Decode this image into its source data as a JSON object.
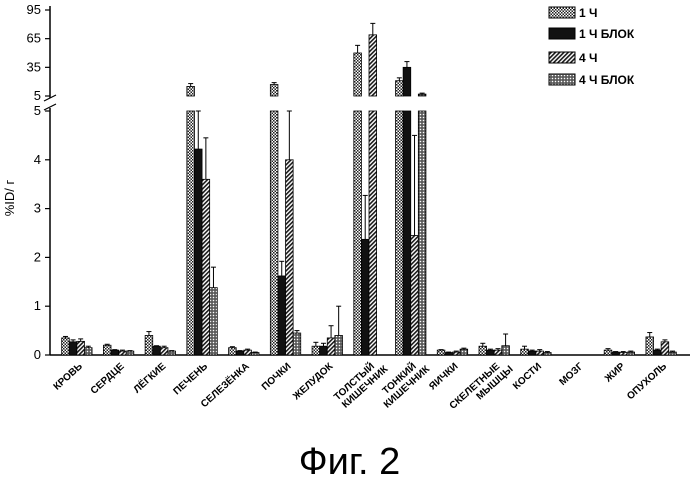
{
  "figure_caption": "Фиг. 2",
  "chart_data": {
    "type": "bar",
    "ylabel": "%ID/ г",
    "title": "",
    "xlabel": "",
    "y_axis_broken": true,
    "ylim_lower": [
      0,
      5
    ],
    "ylim_upper": [
      5,
      95
    ],
    "yticks_lower": [
      "0",
      "1",
      "2",
      "3",
      "4",
      "5"
    ],
    "yticks_upper": [
      "5",
      "35",
      "65",
      "95"
    ],
    "legend_position": "top-right",
    "categories": [
      [
        "КРОВЬ"
      ],
      [
        "СЕРДЦЕ"
      ],
      [
        "ЛЁГКИЕ"
      ],
      [
        "ПЕЧЕНЬ"
      ],
      [
        "СЕЛЕЗЁНКА"
      ],
      [
        "ПОЧКИ"
      ],
      [
        "ЖЕЛУДОК"
      ],
      [
        "ТОЛСТЫЙ",
        "КИШЕЧНИК"
      ],
      [
        "ТОНКИЙ",
        "КИШЕЧНИК"
      ],
      [
        "ЯИЧКИ"
      ],
      [
        "СКЕЛЕТНЫЕ",
        "МЫШЦЫ"
      ],
      [
        "КОСТИ"
      ],
      [
        "МОЗГ"
      ],
      [
        "ЖИР"
      ],
      [
        "ОПУХОЛЬ"
      ]
    ],
    "series": [
      {
        "name": "1 Ч",
        "pattern": "hatch-light",
        "values": [
          0.35,
          0.2,
          0.4,
          15,
          0.15,
          17,
          0.18,
          50,
          21,
          0.1,
          0.18,
          0.12,
          0,
          0.1,
          0.37
        ],
        "errors": [
          0.03,
          0.02,
          0.08,
          3,
          0.02,
          2,
          0.08,
          8,
          3,
          0.01,
          0.06,
          0.06,
          0,
          0.03,
          0.09
        ]
      },
      {
        "name": "1 Ч БЛОК",
        "pattern": "solid-dark",
        "values": [
          0.27,
          0.1,
          0.18,
          4.22,
          0.08,
          1.62,
          0.18,
          2.37,
          35,
          0.05,
          0.1,
          0.08,
          0,
          0.06,
          0.1
        ],
        "errors": [
          0.04,
          0.01,
          0.01,
          0.8,
          0.01,
          0.3,
          0.06,
          0.9,
          6,
          0.01,
          0.02,
          0.02,
          0,
          0.01,
          0.02
        ]
      },
      {
        "name": "4 Ч",
        "pattern": "hatch-medium",
        "values": [
          0.28,
          0.08,
          0.15,
          3.6,
          0.1,
          4.0,
          0.35,
          69,
          2.45,
          0.06,
          0.1,
          0.08,
          0,
          0.05,
          0.27
        ],
        "errors": [
          0.05,
          0.02,
          0.03,
          0.85,
          0.02,
          1.0,
          0.25,
          12,
          2.05,
          0.02,
          0.03,
          0.03,
          0,
          0.02,
          0.04
        ]
      },
      {
        "name": "4 Ч БЛОК",
        "pattern": "hatch-cross",
        "values": [
          0.15,
          0.08,
          0.08,
          1.38,
          0.05,
          0.45,
          0.4,
          0,
          7,
          0.12,
          0.19,
          0.05,
          0,
          0.06,
          0.06
        ],
        "errors": [
          0.03,
          0.01,
          0.01,
          0.42,
          0.01,
          0.05,
          0.6,
          0,
          1,
          0.02,
          0.24,
          0.02,
          0,
          0.02,
          0.02
        ]
      }
    ]
  }
}
